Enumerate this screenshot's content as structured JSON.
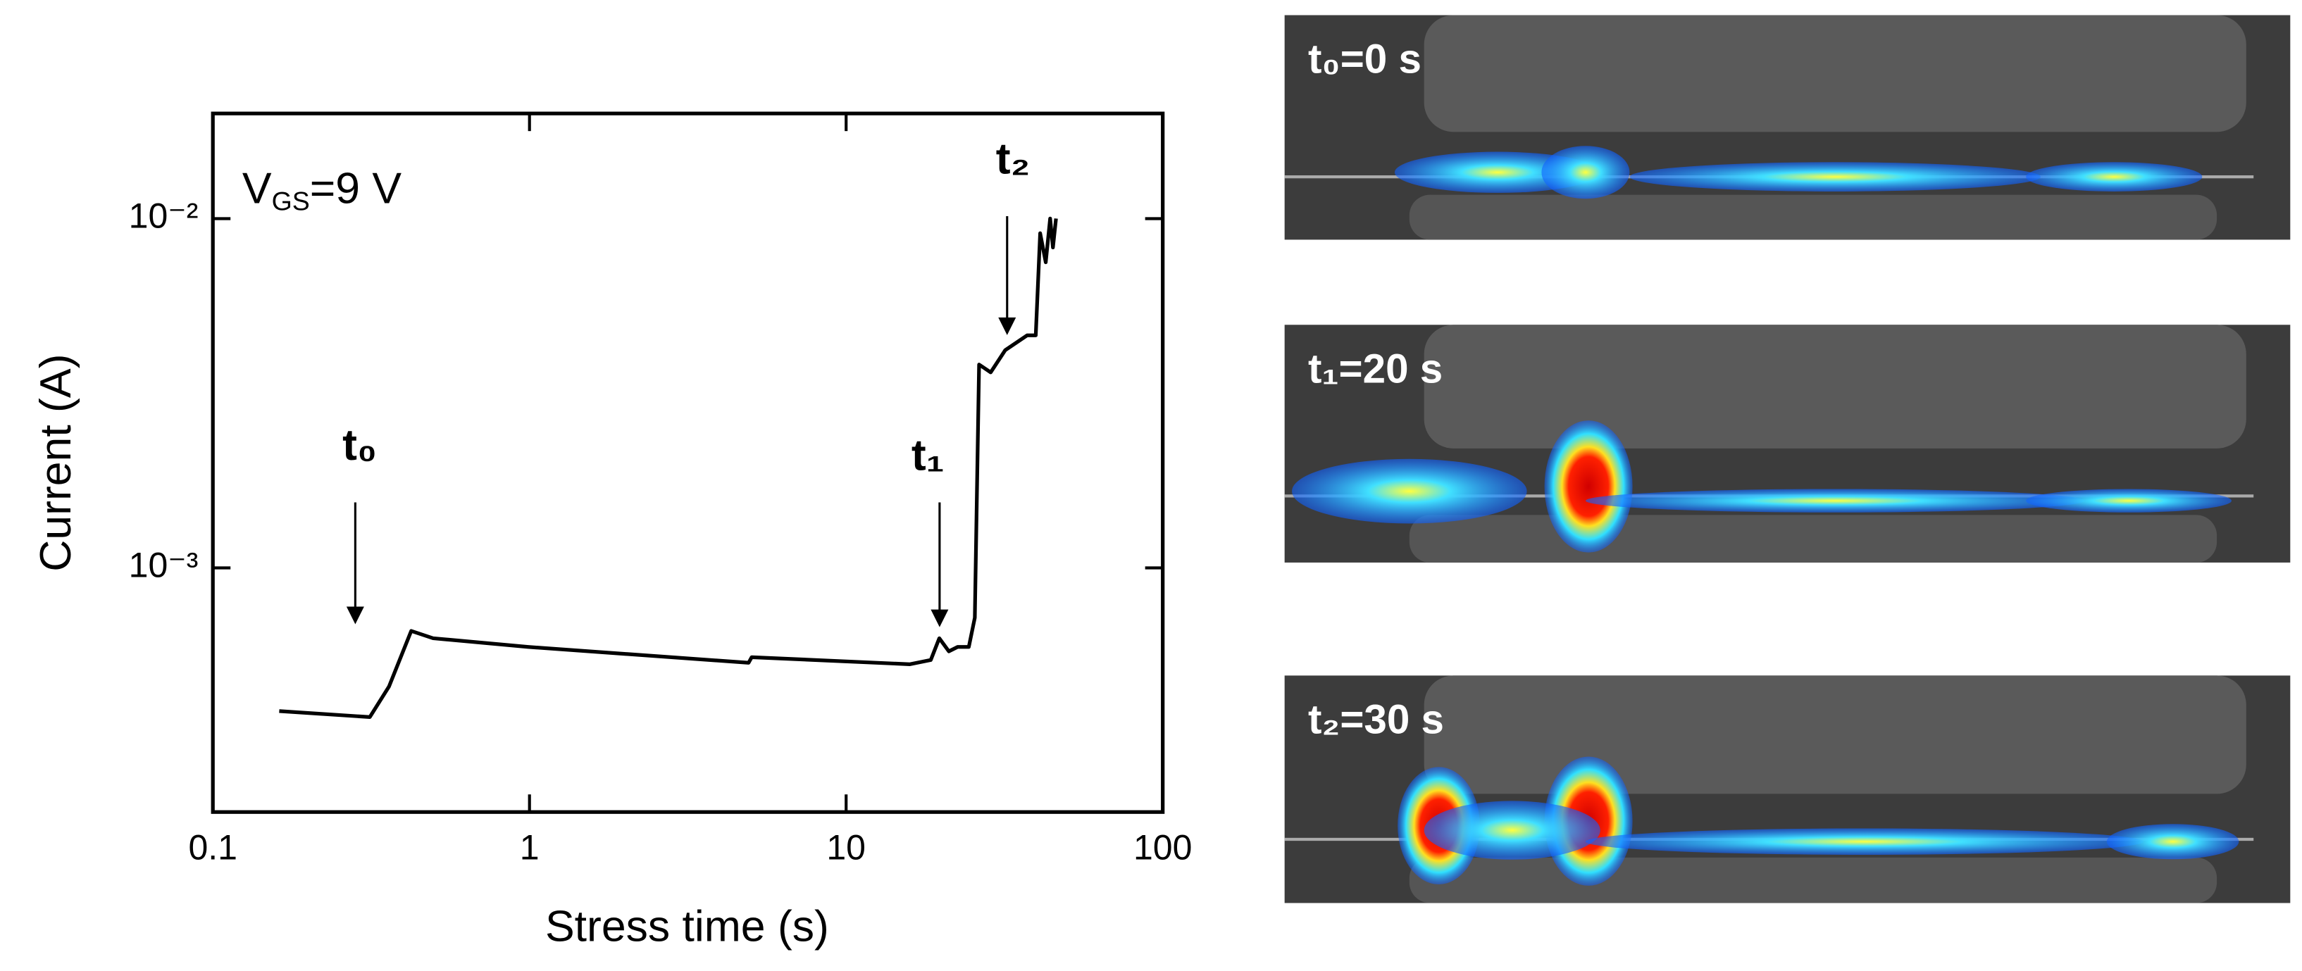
{
  "chart_data": {
    "type": "line",
    "xlabel": "Stress time (s)",
    "ylabel": "Current (A)",
    "log_x": true,
    "log_y": true,
    "xlim": [
      0.1,
      100
    ],
    "ylim": [
      0.0002,
      0.02
    ],
    "xticks": [
      0.1,
      1,
      10,
      100
    ],
    "yticks": [
      {
        "value": 0.001,
        "label": "10⁻³"
      },
      {
        "value": 0.01,
        "label": "10⁻²"
      }
    ],
    "annotation": {
      "main": "V",
      "sub": "GS",
      "tail": "=9 V"
    },
    "markers": [
      "t₀",
      "t₁",
      "t₂"
    ],
    "x": [
      0.162,
      0.313,
      0.36,
      0.423,
      0.496,
      0.99,
      4.92,
      5.03,
      15.9,
      18.5,
      19.7,
      21.1,
      22.5,
      24.4,
      25.5,
      26.3,
      28.6,
      31.8,
      37.3,
      39.7,
      41.0,
      42.7,
      44.1,
      45.0,
      46.0
    ],
    "series": [
      {
        "color": "#000000",
        "values": [
          0.000389,
          0.000374,
          0.000458,
          0.00066,
          0.000629,
          0.000594,
          0.000535,
          0.000555,
          0.00053,
          0.000545,
          0.000629,
          0.000577,
          0.000594,
          0.000594,
          0.00072,
          0.00382,
          0.00363,
          0.0042,
          0.00463,
          0.00463,
          0.00908,
          0.0075,
          0.01,
          0.00827,
          0.01
        ]
      }
    ]
  },
  "images": [
    {
      "label": "t₀=0 s"
    },
    {
      "label": "t₁=20 s"
    },
    {
      "label": "t₂=30 s"
    }
  ]
}
